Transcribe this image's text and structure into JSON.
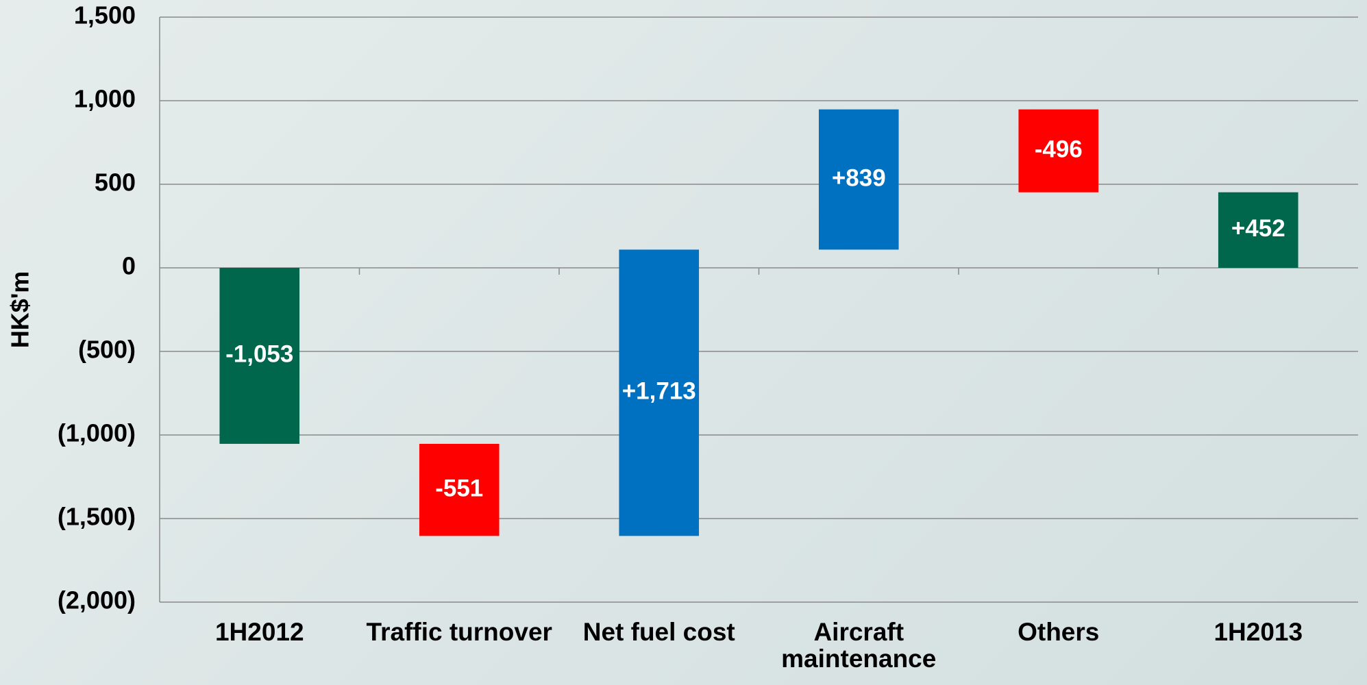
{
  "chart_data": {
    "type": "waterfall",
    "categories": [
      "1H2012",
      "Traffic turnover",
      "Net fuel cost",
      "Aircraft maintenance",
      "Others",
      "1H2013"
    ],
    "values": [
      -1053,
      -551,
      1713,
      839,
      -496,
      452
    ],
    "value_labels": [
      "-1,053",
      "-551",
      "+1,713",
      "+839",
      "-496",
      "+452"
    ],
    "colors": [
      "#00664c",
      "#ff0000",
      "#0070c0",
      "#0070c0",
      "#ff0000",
      "#00664c"
    ],
    "ylabel": "HK$'m",
    "ylim": [
      -2000,
      1500
    ],
    "yticks": [
      {
        "value": 1500,
        "label": "1,500"
      },
      {
        "value": 1000,
        "label": "1,000"
      },
      500,
      0,
      {
        "value": -500,
        "label": "(500)"
      },
      {
        "value": -1000,
        "label": "(1,000)"
      },
      {
        "value": -1500,
        "label": "(1,500)"
      },
      {
        "value": -2000,
        "label": "(2,000)"
      }
    ],
    "grid": true
  }
}
